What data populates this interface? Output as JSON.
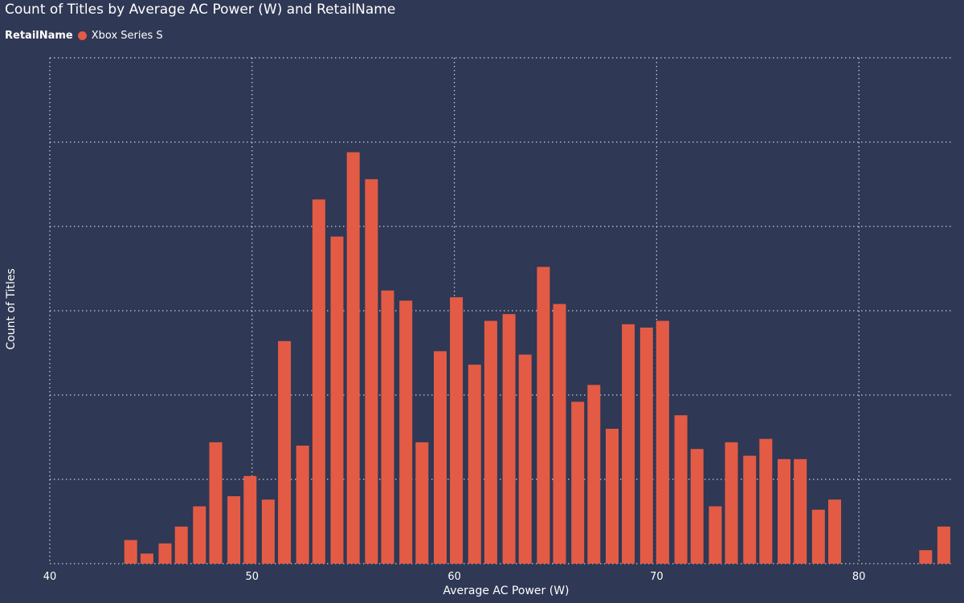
{
  "chart_data": {
    "type": "bar",
    "title": "Count of Titles by Average AC Power (W) and RetailName",
    "legend": {
      "title": "RetailName",
      "position": "top-left",
      "entries": [
        {
          "name": "Xbox Series S",
          "color": "#e35b45"
        }
      ]
    },
    "xlabel": "Average AC Power (W)",
    "ylabel": "Count of Titles",
    "xlim": [
      40,
      84.6
    ],
    "xticks": [
      40,
      50,
      60,
      70,
      80
    ],
    "ylim": [
      0,
      30
    ],
    "grid": true,
    "series": [
      {
        "name": "Xbox Series S",
        "color": "#e35b45",
        "x": [
          44,
          44.8,
          45.7,
          46.5,
          47.4,
          48.2,
          49.1,
          49.9,
          50.8,
          51.6,
          52.5,
          53.3,
          54.2,
          55,
          55.9,
          56.7,
          57.6,
          58.4,
          59.3,
          60.1,
          61,
          61.8,
          62.7,
          63.5,
          64.4,
          65.2,
          66.1,
          66.9,
          67.8,
          68.6,
          69.5,
          70.3,
          71.2,
          72,
          72.9,
          73.7,
          74.6,
          75.4,
          76.3,
          77.1,
          78,
          78.8,
          83.3,
          84.2
        ],
        "values": [
          1.4,
          0.6,
          1.2,
          2.2,
          3.4,
          7.2,
          4.0,
          5.2,
          3.8,
          13.2,
          7.0,
          21.6,
          19.4,
          24.4,
          22.8,
          16.2,
          15.6,
          7.2,
          12.6,
          15.8,
          11.8,
          14.4,
          14.8,
          12.4,
          17.6,
          15.4,
          9.6,
          10.6,
          8.0,
          14.2,
          14.0,
          14.4,
          8.8,
          6.8,
          3.4,
          7.2,
          6.4,
          7.4,
          6.2,
          6.2,
          3.2,
          3.8,
          0.8,
          2.2
        ]
      }
    ]
  }
}
